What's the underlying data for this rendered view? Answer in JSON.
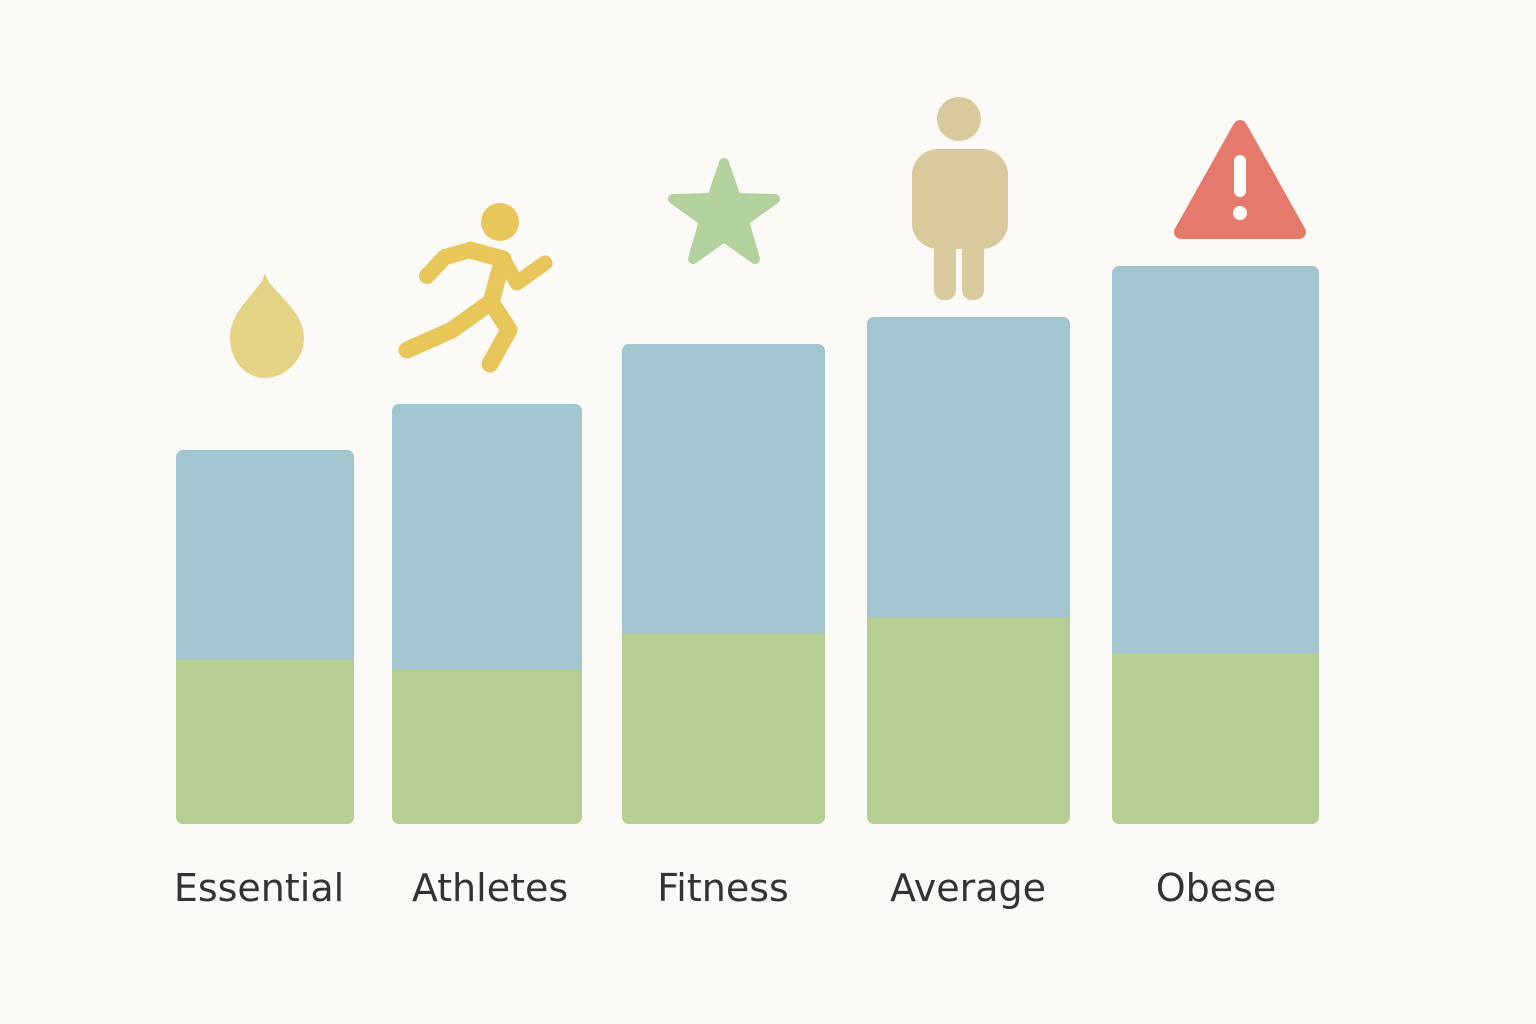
{
  "chart_data": {
    "type": "bar",
    "stacked": true,
    "categories": [
      "Essential",
      "Athletes",
      "Fitness",
      "Average",
      "Obese"
    ],
    "series": [
      {
        "color": "#b5cf93",
        "values": [
          164,
          154,
          190,
          206,
          171
        ]
      },
      {
        "color": "#a3c5d0",
        "values": [
          210,
          266,
          290,
          301,
          387
        ]
      }
    ],
    "ylim": [
      0,
      560
    ],
    "grid": false,
    "legend": "none",
    "title": "",
    "xlabel": "",
    "ylabel": "",
    "icons": [
      {
        "category": "Essential",
        "name": "drop-icon",
        "color": "#e5d385"
      },
      {
        "category": "Athletes",
        "name": "runner-icon",
        "color": "#e9c65a"
      },
      {
        "category": "Fitness",
        "name": "star-icon",
        "color": "#b3d19d"
      },
      {
        "category": "Average",
        "name": "person-icon",
        "color": "#d8ca9d"
      },
      {
        "category": "Obese",
        "name": "warning-icon",
        "color": "#e57a6c"
      }
    ]
  }
}
